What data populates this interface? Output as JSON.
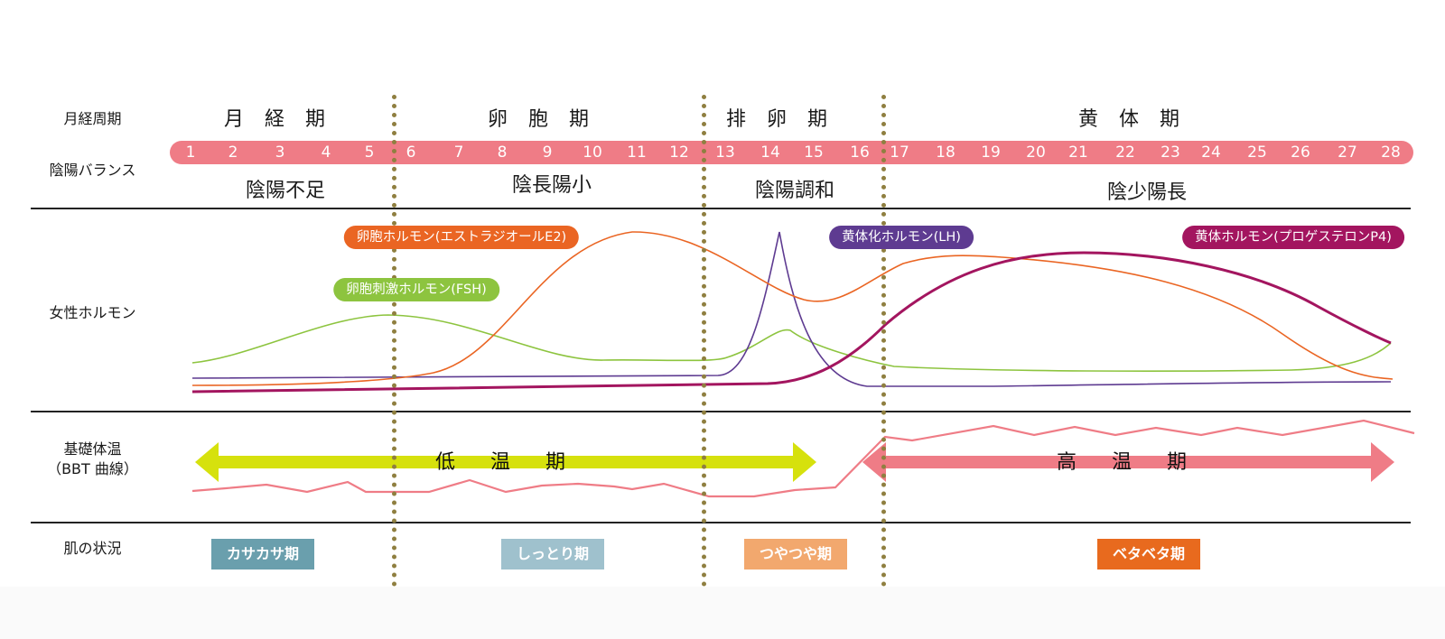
{
  "row_labels": {
    "cycle": "月経周期",
    "balance": "陰陽バランス",
    "hormone": "女性ホルモン",
    "bbt_line1": "基礎体温",
    "bbt_line2": "（BBT 曲線）",
    "skin": "肌の状況"
  },
  "phases": [
    "月 経 期",
    "卵 胞 期",
    "排 卵 期",
    "黄 体 期"
  ],
  "days": [
    "1",
    "2",
    "3",
    "4",
    "5",
    "6",
    "7",
    "8",
    "9",
    "10",
    "11",
    "12",
    "13",
    "14",
    "15",
    "16",
    "17",
    "18",
    "19",
    "20",
    "21",
    "22",
    "23",
    "24",
    "25",
    "26",
    "27",
    "28"
  ],
  "balance": [
    "陰陽不足",
    "陰長陽小",
    "陰陽調和",
    "陰少陽長"
  ],
  "hormones": {
    "e2": {
      "label": "卵胞ホルモン(エストラジオールE2)",
      "color": "#ea6523"
    },
    "fsh": {
      "label": "卵胞刺激ホルモン(FSH)",
      "color": "#8dc43f"
    },
    "lh": {
      "label": "黄体化ホルモン(LH)",
      "color": "#5e3b91"
    },
    "p4": {
      "label": "黄体ホルモン(プロゲステロンP4)",
      "color": "#a3155f"
    }
  },
  "temperature": {
    "low": "低 温 期",
    "high": "高 温 期",
    "low_color": "#d6e10d",
    "high_color": "#ef7c86"
  },
  "skin": [
    {
      "label": "カサカサ期",
      "color": "#6a9fad"
    },
    {
      "label": "しっとり期",
      "color": "#9fc1cd"
    },
    {
      "label": "つやつや期",
      "color": "#f2a86e"
    },
    {
      "label": "ベタベタ期",
      "color": "#e86a1e"
    }
  ],
  "colors": {
    "day_band": "#ef7c86",
    "divider_dots": "#8f7f40"
  }
}
